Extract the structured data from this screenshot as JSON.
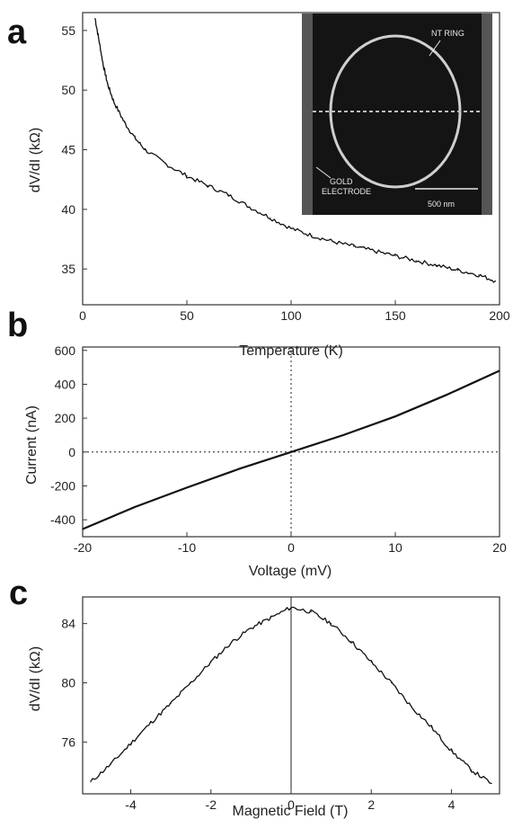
{
  "panels": [
    {
      "letter": "a"
    },
    {
      "letter": "b"
    },
    {
      "letter": "c"
    }
  ],
  "chart_data": [
    {
      "type": "line",
      "panel": "a",
      "xlabel": "Temperature (K)",
      "ylabel": "dV/dI (kΩ)",
      "xlim": [
        0,
        200
      ],
      "ylim": [
        32,
        56.5
      ],
      "xticks": [
        "0",
        "50",
        "100",
        "150",
        "200"
      ],
      "yticks": [
        "35",
        "40",
        "45",
        "50",
        "55"
      ],
      "grid": false,
      "x": [
        6,
        8,
        10,
        12,
        15,
        20,
        25,
        30,
        40,
        50,
        60,
        70,
        80,
        90,
        100,
        110,
        120,
        130,
        140,
        150,
        160,
        170,
        180,
        190,
        198
      ],
      "y": [
        56.0,
        54.0,
        52.0,
        50.5,
        49.0,
        47.3,
        46.0,
        45.0,
        43.8,
        42.8,
        42.0,
        41.2,
        40.2,
        39.3,
        38.4,
        37.8,
        37.3,
        36.9,
        36.5,
        36.1,
        35.7,
        35.3,
        34.9,
        34.5,
        34.0
      ],
      "inset": {
        "labels": [
          "NT RING",
          "GOLD",
          "ELECTRODE",
          "500 nm"
        ],
        "scale_bar": "500 nm"
      }
    },
    {
      "type": "line",
      "panel": "b",
      "xlabel": "Voltage  (mV)",
      "ylabel": "Current  (nA)",
      "xlim": [
        -20,
        20
      ],
      "ylim": [
        -500,
        620
      ],
      "xticks": [
        "-20",
        "-10",
        "0",
        "10",
        "20"
      ],
      "yticks": [
        "-400",
        "-200",
        "0",
        "200",
        "400",
        "600"
      ],
      "grid": false,
      "reference_lines": {
        "x0": true,
        "y0": true,
        "style": "dotted"
      },
      "x": [
        -20,
        -15,
        -10,
        -5,
        0,
        5,
        10,
        15,
        20
      ],
      "y": [
        -455,
        -325,
        -210,
        -100,
        0,
        100,
        210,
        340,
        480
      ]
    },
    {
      "type": "line",
      "panel": "c",
      "xlabel": "Magnetic Field (T)",
      "ylabel": "dV/dI (kΩ)",
      "xlim": [
        -5.2,
        5.2
      ],
      "ylim": [
        72.5,
        85.8
      ],
      "xticks": [
        "-4",
        "-2",
        "0",
        "2",
        "4"
      ],
      "yticks": [
        "76",
        "80",
        "84"
      ],
      "grid": false,
      "reference_lines": {
        "x0": true,
        "style": "solid"
      },
      "x": [
        -5.0,
        -4.5,
        -4.0,
        -3.5,
        -3.0,
        -2.5,
        -2.0,
        -1.5,
        -1.0,
        -0.5,
        0.0,
        0.5,
        1.0,
        1.5,
        2.0,
        2.5,
        3.0,
        3.5,
        4.0,
        4.5,
        5.0
      ],
      "y": [
        73.3,
        74.5,
        75.9,
        77.3,
        78.6,
        80.0,
        81.4,
        82.7,
        83.7,
        84.4,
        85.1,
        84.8,
        84.0,
        82.8,
        81.4,
        80.0,
        78.4,
        77.0,
        75.4,
        74.1,
        73.2
      ]
    }
  ]
}
